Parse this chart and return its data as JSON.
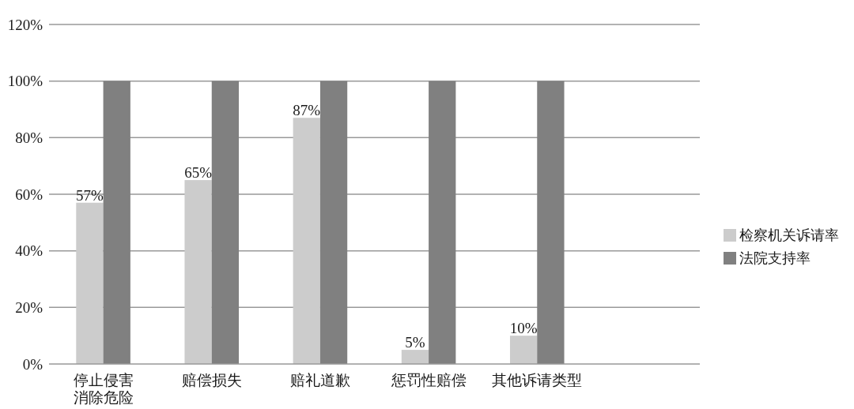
{
  "chart_data": {
    "type": "bar",
    "categories": [
      "停止侵害消除危险",
      "赔偿损失",
      "赔礼道歉",
      "惩罚性赔偿",
      "其他诉请类型",
      null
    ],
    "series": [
      {
        "name": "检察机关诉请率",
        "color": "#cccccc",
        "values": [
          57,
          65,
          87,
          5,
          10,
          null
        ],
        "value_labels": [
          "57%",
          "65%",
          "87%",
          "5%",
          "10%",
          null
        ]
      },
      {
        "name": "法院支持率",
        "color": "#808080",
        "values": [
          100,
          100,
          100,
          100,
          100,
          null
        ]
      }
    ],
    "ylim": [
      0,
      120
    ],
    "yticks": [
      {
        "value": 0,
        "label": "0%"
      },
      {
        "value": 20,
        "label": "20%"
      },
      {
        "value": 40,
        "label": "40%"
      },
      {
        "value": 60,
        "label": "60%"
      },
      {
        "value": 80,
        "label": "80%"
      },
      {
        "value": 100,
        "label": "100%"
      },
      {
        "value": 120,
        "label": "120%"
      }
    ],
    "grid": "y",
    "legend": "right"
  }
}
